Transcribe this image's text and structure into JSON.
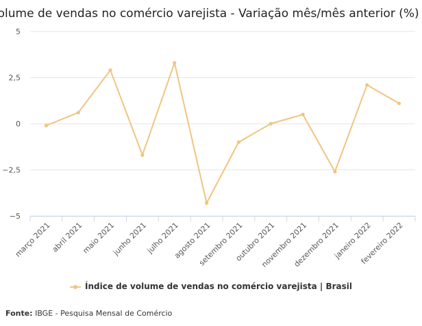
{
  "colors": {
    "series": "#f0c47f",
    "grid": "#e6e6e6",
    "axis": "#ccd6eb",
    "text": "#555555"
  },
  "chart_data": {
    "type": "line",
    "title": "Volume de vendas no comércio varejista - Variação mês/mês anterior (%)",
    "categories": [
      "março 2021",
      "abril 2021",
      "maio 2021",
      "junho 2021",
      "julho 2021",
      "agosto 2021",
      "setembro 2021",
      "outubro 2021",
      "novembro 2021",
      "dezembro 2021",
      "janeiro 2022",
      "fevereiro 2022"
    ],
    "series": [
      {
        "name": "Índice de volume de vendas no comércio varejista | Brasil",
        "values": [
          -0.1,
          0.6,
          2.9,
          -1.7,
          3.3,
          -4.3,
          -1.0,
          0.0,
          0.5,
          -2.6,
          2.1,
          1.1
        ]
      }
    ],
    "ylim": [
      -5,
      5
    ],
    "yticks": [
      -5,
      -2.5,
      0,
      2.5,
      5
    ],
    "ytick_labels": [
      "−5",
      "−2,5",
      "0",
      "2,5",
      "5"
    ],
    "xlabel": "",
    "ylabel": "",
    "grid": true,
    "legend": "bottom-center"
  },
  "source": {
    "label": "Fonte:",
    "text": "IBGE - Pesquisa Mensal de Comércio"
  }
}
